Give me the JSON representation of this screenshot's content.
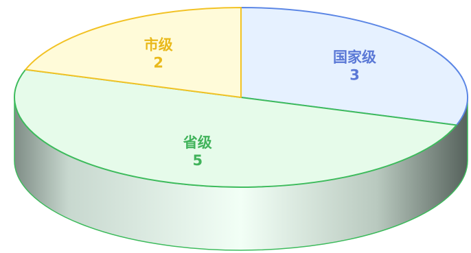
{
  "chart_data": {
    "type": "pie",
    "title": "",
    "categories": [
      "国家级",
      "省级",
      "市级"
    ],
    "values": [
      3,
      5,
      2
    ],
    "colors": {
      "国家级": {
        "fill": "#e6f1ff",
        "stroke": "#5b86e5",
        "label": "#5a78d6"
      },
      "省级": {
        "fill": "#e6fbea",
        "stroke": "#3dbb5c",
        "label": "#41b35b"
      },
      "市级": {
        "fill": "#fffbd9",
        "stroke": "#f2c224",
        "label": "#e9b91a"
      }
    },
    "style": "3d",
    "legend": "none",
    "data_labels": "inside"
  }
}
